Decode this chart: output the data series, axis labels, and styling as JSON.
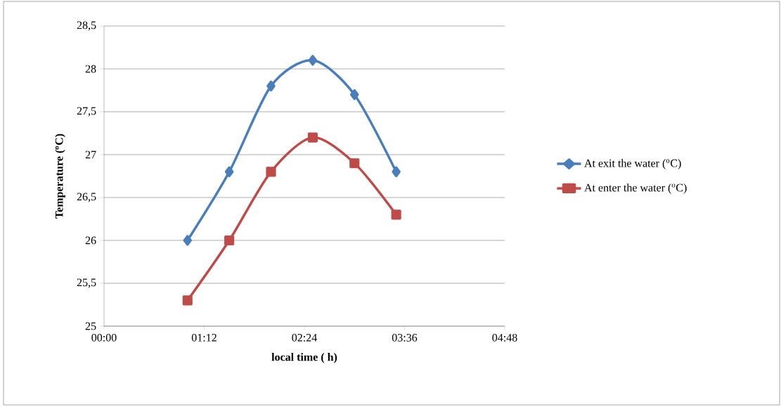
{
  "chart_data": {
    "type": "line",
    "xlabel": "local time ( h)",
    "ylabel": "Temperature ($^{o}$C)",
    "xlim": [
      0,
      4.8
    ],
    "xticks": [
      {
        "value": 0,
        "label": "00:00"
      },
      {
        "value": 1.2,
        "label": "01:12"
      },
      {
        "value": 2.4,
        "label": "02:24"
      },
      {
        "value": 3.6,
        "label": "03:36"
      },
      {
        "value": 4.8,
        "label": "04:48"
      }
    ],
    "ylim": [
      25,
      28.5
    ],
    "yticks": [
      25,
      {
        "value": 25.5,
        "label": "25,5"
      },
      26,
      {
        "value": 26.5,
        "label": "26,5"
      },
      27,
      {
        "value": 27.5,
        "label": "27,5"
      },
      28,
      {
        "value": 28.5,
        "label": "28,5"
      }
    ],
    "grid": "y",
    "legend": "right",
    "series": [
      {
        "name": "At exit the water ($^{o}$C)",
        "color": "#4a7ebb",
        "marker": "diamond",
        "x": [
          1.0,
          1.5,
          2.0,
          2.5,
          3.0,
          3.5
        ],
        "values": [
          26.0,
          26.8,
          27.8,
          28.1,
          27.7,
          26.8
        ]
      },
      {
        "name": "At enter the water ($^{o}$C)",
        "color": "#be4b48",
        "marker": "square",
        "x": [
          1.0,
          1.5,
          2.0,
          2.5,
          3.0,
          3.5
        ],
        "values": [
          25.3,
          26.0,
          26.8,
          27.2,
          26.9,
          26.3
        ]
      }
    ]
  }
}
